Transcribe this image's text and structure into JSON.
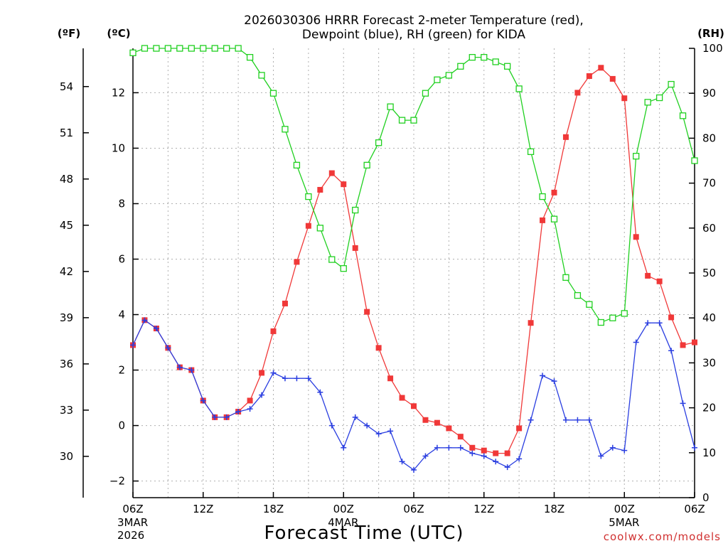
{
  "chart_data": {
    "type": "line",
    "title_line1": "2026030306 HRRR Forecast 2-meter Temperature (red),",
    "title_line2": "Dewpoint (blue), RH (green) for KIDA",
    "unit_f": "(ºF)",
    "unit_c": "(ºC)",
    "unit_rh": "(RH)",
    "xlabel": "Forecast Time (UTC)",
    "credit": "coolwx.com/models",
    "x_start_hour": 6,
    "x_end_hour": 54,
    "x_ticks": [
      {
        "hour": 6,
        "label": "06Z",
        "sub": [
          "3MAR",
          "2026"
        ]
      },
      {
        "hour": 12,
        "label": "12Z",
        "sub": []
      },
      {
        "hour": 18,
        "label": "18Z",
        "sub": []
      },
      {
        "hour": 24,
        "label": "00Z",
        "sub": [
          "4MAR"
        ]
      },
      {
        "hour": 30,
        "label": "06Z",
        "sub": []
      },
      {
        "hour": 36,
        "label": "12Z",
        "sub": []
      },
      {
        "hour": 42,
        "label": "18Z",
        "sub": []
      },
      {
        "hour": 48,
        "label": "00Z",
        "sub": [
          "5MAR"
        ]
      },
      {
        "hour": 54,
        "label": "06Z",
        "sub": []
      }
    ],
    "ylim_c": [
      -2.6,
      13.6
    ],
    "y_ticks_c": [
      -2,
      0,
      2,
      4,
      6,
      8,
      10,
      12
    ],
    "y_ticks_f": [
      30,
      33,
      36,
      39,
      42,
      45,
      48,
      51,
      54
    ],
    "ylim_rh": [
      0,
      100
    ],
    "y_ticks_rh": [
      0,
      10,
      20,
      30,
      40,
      50,
      60,
      70,
      80,
      90,
      100
    ],
    "series": [
      {
        "name": "Temperature (°C)",
        "axis": "left",
        "color": "#f03838",
        "marker": "filled-square",
        "values": [
          2.9,
          3.8,
          3.5,
          2.8,
          2.1,
          2.0,
          0.9,
          0.3,
          0.3,
          0.5,
          0.9,
          1.9,
          3.4,
          4.4,
          5.9,
          7.2,
          8.5,
          9.1,
          8.7,
          6.4,
          4.1,
          2.8,
          1.7,
          1.0,
          0.7,
          0.2,
          0.1,
          -0.1,
          -0.4,
          -0.8,
          -0.9,
          -1.0,
          -1.0,
          -0.1,
          3.7,
          7.4,
          8.4,
          10.4,
          12.0,
          12.6,
          12.9,
          12.5,
          11.8,
          6.8,
          5.4,
          5.2,
          3.9,
          2.9,
          3.0
        ]
      },
      {
        "name": "Dewpoint (°C)",
        "axis": "left",
        "color": "#2a3ee0",
        "marker": "plus",
        "values": [
          2.9,
          3.8,
          3.5,
          2.8,
          2.1,
          2.0,
          0.9,
          0.3,
          0.3,
          0.5,
          0.6,
          1.1,
          1.9,
          1.7,
          1.7,
          1.7,
          1.2,
          0.0,
          -0.8,
          0.3,
          0.0,
          -0.3,
          -0.2,
          -1.3,
          -1.6,
          -1.1,
          -0.8,
          -0.8,
          -0.8,
          -1.0,
          -1.1,
          -1.3,
          -1.5,
          -1.2,
          0.2,
          1.8,
          1.6,
          0.2,
          0.2,
          0.2,
          -1.1,
          -0.8,
          -0.9,
          3.0,
          3.7,
          3.7,
          2.7,
          0.8,
          -0.8
        ]
      },
      {
        "name": "RH (%)",
        "axis": "right",
        "color": "#20d020",
        "marker": "open-square",
        "values": [
          99,
          100,
          100,
          100,
          100,
          100,
          100,
          100,
          100,
          100,
          98,
          94,
          90,
          82,
          74,
          67,
          60,
          53,
          51,
          64,
          74,
          79,
          87,
          84,
          84,
          90,
          93,
          94,
          96,
          98,
          98,
          97,
          96,
          91,
          77,
          67,
          62,
          49,
          45,
          43,
          39,
          40,
          41,
          76,
          88,
          89,
          92,
          85,
          75
        ]
      }
    ]
  }
}
